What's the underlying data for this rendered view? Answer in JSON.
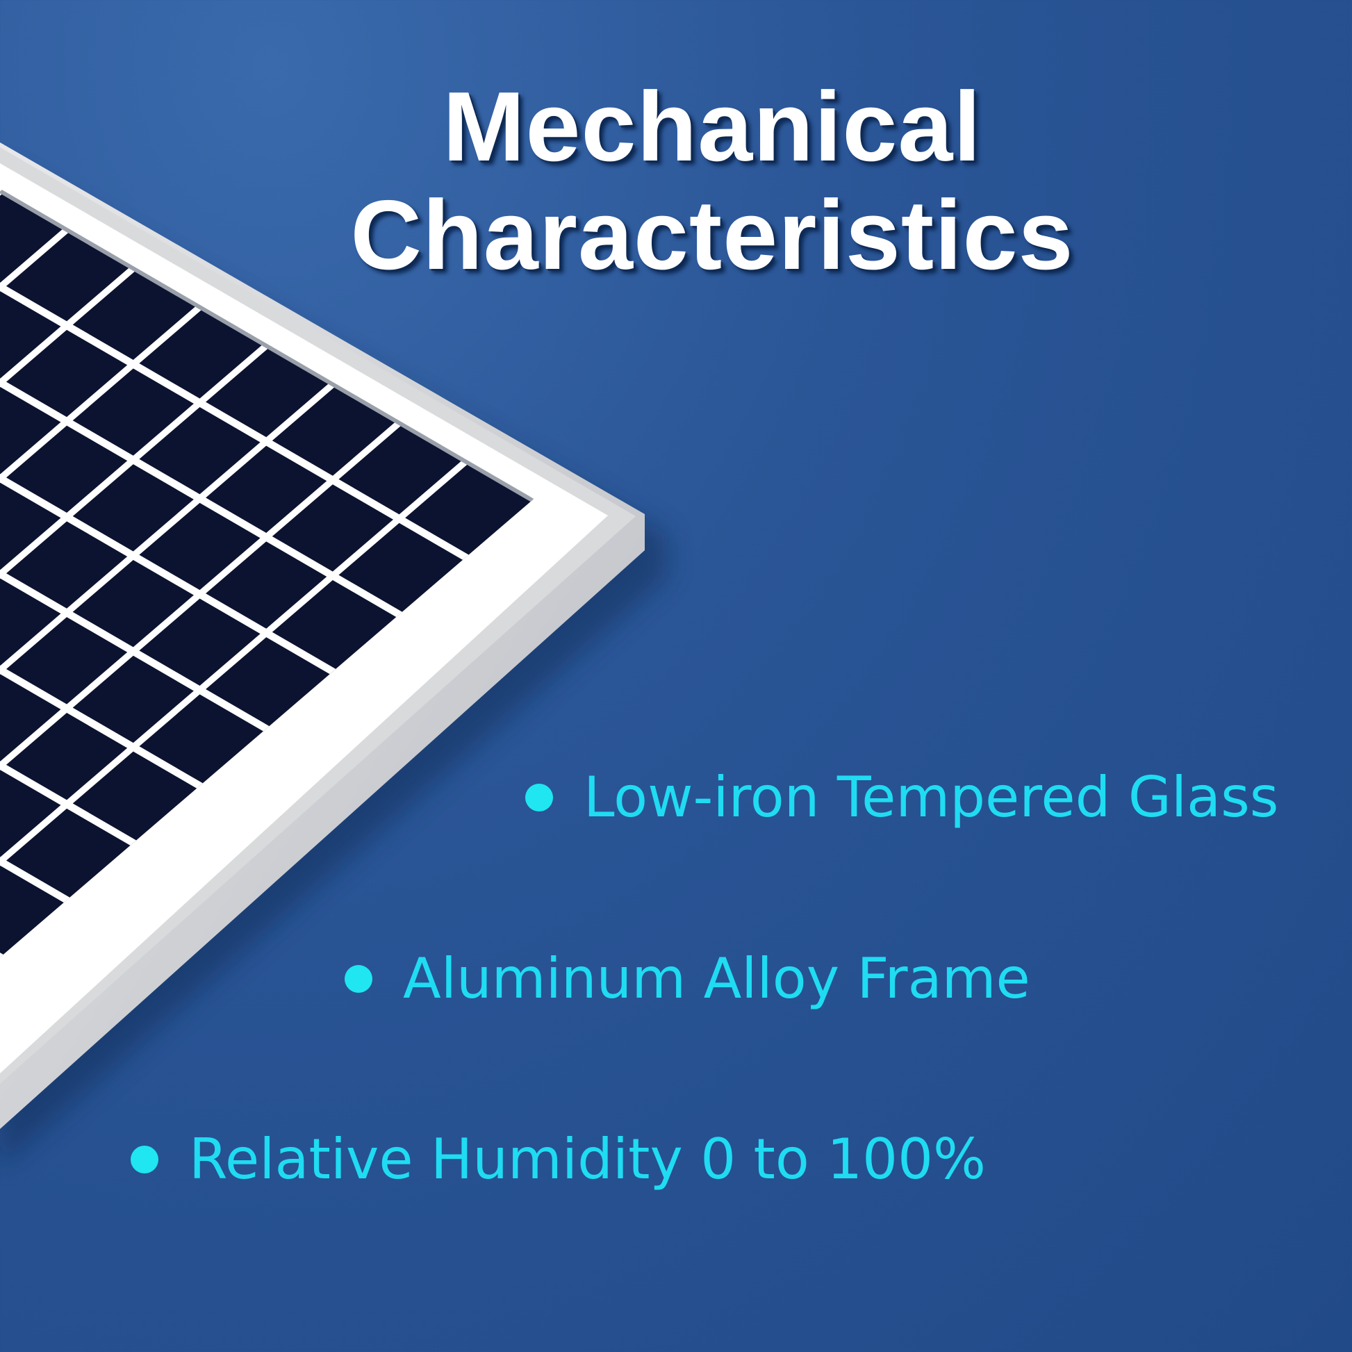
{
  "title": {
    "line1": "Mechanical",
    "line2": "Characteristics"
  },
  "bullets": [
    {
      "icon": "bullet-dot-icon",
      "label": "Low-iron Tempered Glass"
    },
    {
      "icon": "bullet-dot-icon",
      "label": "Aluminum Alloy Frame"
    },
    {
      "icon": "bullet-dot-icon",
      "label": "Relative Humidity 0 to 100%"
    }
  ],
  "colors": {
    "background": "#2a5596",
    "title": "#ffffff",
    "bullet_text": "#1fdcf2",
    "cell": "#0b1330"
  }
}
